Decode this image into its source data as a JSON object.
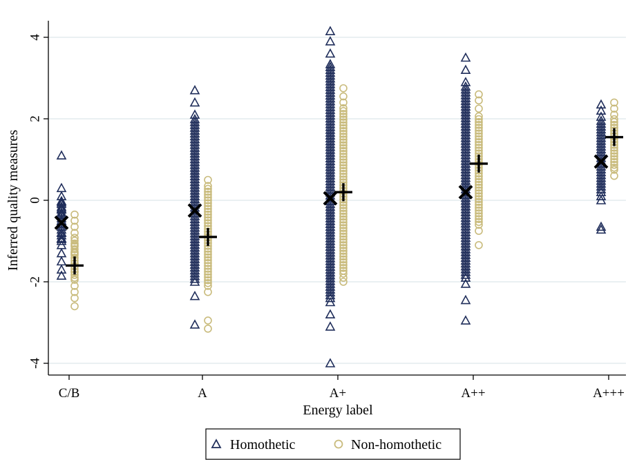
{
  "chart_data": {
    "type": "scatter",
    "title": "",
    "xlabel": "Energy label",
    "ylabel": "Inferred quality measures",
    "categories": [
      "C/B",
      "A",
      "A+",
      "A++",
      "A+++"
    ],
    "ylim": [
      -4.4,
      4.4
    ],
    "yticks": [
      -4,
      -2,
      0,
      2,
      4
    ],
    "ytick_labels": [
      "-4",
      "-2",
      "0",
      "2",
      "4"
    ],
    "grid": true,
    "legend_position": "bottom",
    "colors": {
      "homothetic": "#1f2d5a",
      "non_homothetic": "#c9bb7c",
      "mean_marker": "#000000"
    },
    "series": [
      {
        "name": "Homothetic",
        "marker": "triangle",
        "points": [
          {
            "category": "C/B",
            "y": 1.1
          },
          {
            "category": "C/B",
            "y": 0.3
          },
          {
            "category": "C/B",
            "y": 0.1
          },
          {
            "category": "C/B",
            "y": -0.05
          },
          {
            "category": "C/B",
            "y": -0.2
          },
          {
            "category": "C/B",
            "y": -0.35
          },
          {
            "category": "C/B",
            "y": -0.5
          },
          {
            "category": "C/B",
            "y": -0.65
          },
          {
            "category": "C/B",
            "y": -0.8
          },
          {
            "category": "C/B",
            "y": -0.95
          },
          {
            "category": "C/B",
            "y": -1.1
          },
          {
            "category": "C/B",
            "y": -1.3
          },
          {
            "category": "C/B",
            "y": -1.5
          },
          {
            "category": "C/B",
            "y": -1.7
          },
          {
            "category": "C/B",
            "y": -1.85
          },
          {
            "category": "A",
            "y": 2.7
          },
          {
            "category": "A",
            "y": 2.4
          },
          {
            "category": "A",
            "y": 2.1
          },
          {
            "category": "A",
            "y": -2.35
          },
          {
            "category": "A",
            "y": -3.05
          },
          {
            "category": "A+",
            "y": 4.15
          },
          {
            "category": "A+",
            "y": 3.9
          },
          {
            "category": "A+",
            "y": 3.6
          },
          {
            "category": "A+",
            "y": -2.5
          },
          {
            "category": "A+",
            "y": -2.8
          },
          {
            "category": "A+",
            "y": -3.1
          },
          {
            "category": "A+",
            "y": -4.0
          },
          {
            "category": "A++",
            "y": 3.5
          },
          {
            "category": "A++",
            "y": 3.2
          },
          {
            "category": "A++",
            "y": 2.9
          },
          {
            "category": "A++",
            "y": -2.05
          },
          {
            "category": "A++",
            "y": -2.45
          },
          {
            "category": "A++",
            "y": -2.95
          },
          {
            "category": "A+++",
            "y": 2.35
          },
          {
            "category": "A+++",
            "y": 2.2
          },
          {
            "category": "A+++",
            "y": 2.05
          },
          {
            "category": "A+++",
            "y": 0.0
          },
          {
            "category": "A+++",
            "y": 0.1
          },
          {
            "category": "A+++",
            "y": -0.65
          },
          {
            "category": "A+++",
            "y": -0.72
          }
        ],
        "ranges": [
          {
            "category": "C/B",
            "min": -1.0,
            "max": 0.0
          },
          {
            "category": "A",
            "min": -2.0,
            "max": 2.0
          },
          {
            "category": "A+",
            "min": -2.4,
            "max": 3.4
          },
          {
            "category": "A++",
            "min": -1.9,
            "max": 2.8
          },
          {
            "category": "A+++",
            "min": 0.2,
            "max": 2.0
          }
        ],
        "means": [
          {
            "category": "C/B",
            "y": -0.55
          },
          {
            "category": "A",
            "y": -0.25
          },
          {
            "category": "A+",
            "y": 0.05
          },
          {
            "category": "A++",
            "y": 0.2
          },
          {
            "category": "A+++",
            "y": 0.95
          }
        ]
      },
      {
        "name": "Non-homothetic",
        "marker": "circle",
        "points": [
          {
            "category": "C/B",
            "y": -0.35
          },
          {
            "category": "C/B",
            "y": -0.5
          },
          {
            "category": "C/B",
            "y": -0.65
          },
          {
            "category": "C/B",
            "y": -0.8
          },
          {
            "category": "C/B",
            "y": -1.1
          },
          {
            "category": "C/B",
            "y": -1.3
          },
          {
            "category": "C/B",
            "y": -1.55
          },
          {
            "category": "C/B",
            "y": -1.75
          },
          {
            "category": "C/B",
            "y": -1.95
          },
          {
            "category": "C/B",
            "y": -2.1
          },
          {
            "category": "C/B",
            "y": -2.25
          },
          {
            "category": "C/B",
            "y": -2.4
          },
          {
            "category": "C/B",
            "y": -2.6
          },
          {
            "category": "A",
            "y": 0.5
          },
          {
            "category": "A",
            "y": 0.35
          },
          {
            "category": "A",
            "y": -2.25
          },
          {
            "category": "A",
            "y": -2.95
          },
          {
            "category": "A",
            "y": -3.15
          },
          {
            "category": "A+",
            "y": 2.75
          },
          {
            "category": "A+",
            "y": 2.55
          },
          {
            "category": "A+",
            "y": 2.4
          },
          {
            "category": "A+",
            "y": -1.9
          },
          {
            "category": "A+",
            "y": -2.0
          },
          {
            "category": "A++",
            "y": 2.6
          },
          {
            "category": "A++",
            "y": 2.45
          },
          {
            "category": "A++",
            "y": 2.25
          },
          {
            "category": "A++",
            "y": -0.75
          },
          {
            "category": "A++",
            "y": -1.1
          },
          {
            "category": "A+++",
            "y": 2.4
          },
          {
            "category": "A+++",
            "y": 2.25
          },
          {
            "category": "A+++",
            "y": 2.1
          },
          {
            "category": "A+++",
            "y": 0.6
          },
          {
            "category": "A+++",
            "y": 0.75
          }
        ],
        "ranges": [
          {
            "category": "C/B",
            "min": -1.9,
            "max": -0.9
          },
          {
            "category": "A",
            "min": -2.1,
            "max": 0.3
          },
          {
            "category": "A+",
            "min": -1.8,
            "max": 2.3
          },
          {
            "category": "A++",
            "min": -0.6,
            "max": 2.1
          },
          {
            "category": "A+++",
            "min": 0.8,
            "max": 2.0
          }
        ],
        "means": [
          {
            "category": "C/B",
            "y": -1.6
          },
          {
            "category": "A",
            "y": -0.9
          },
          {
            "category": "A+",
            "y": 0.2
          },
          {
            "category": "A++",
            "y": 0.9
          },
          {
            "category": "A+++",
            "y": 1.55
          }
        ]
      }
    ]
  },
  "legend": {
    "items": [
      {
        "label": "Homothetic",
        "marker": "triangle"
      },
      {
        "label": "Non-homothetic",
        "marker": "circle"
      }
    ]
  }
}
